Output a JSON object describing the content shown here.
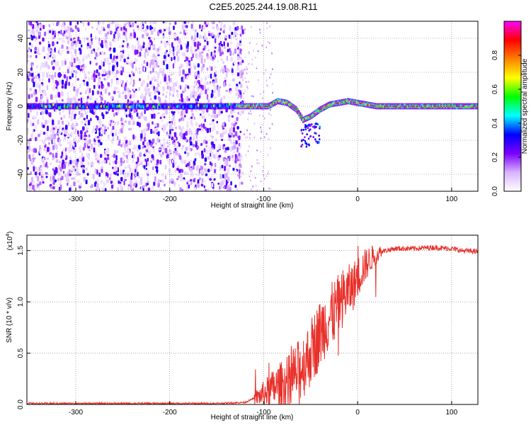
{
  "figure_title": "C2E5.2025.244.19.08.R11",
  "chart_data": [
    {
      "type": "heatmap",
      "title": "C2E5.2025.244.19.08.R11",
      "xlabel": "Height of straight line (km)",
      "ylabel": "Frequency (Hz)",
      "xlim": [
        -352,
        128
      ],
      "ylim": [
        -50,
        50
      ],
      "x_ticks": [
        -300,
        -200,
        -100,
        0,
        100
      ],
      "x_tick_labels": [
        "-300",
        "-200",
        "-100",
        "0",
        "100"
      ],
      "y_ticks": [
        -40,
        -20,
        0,
        20,
        40
      ],
      "y_tick_labels": [
        "-40",
        "-20",
        "0",
        "20",
        "40"
      ],
      "noise_region_end_km": -130,
      "signal_track": {
        "x": [
          -352,
          -300,
          -200,
          -130,
          -110,
          -95,
          -85,
          -75,
          -65,
          -58,
          -50,
          -40,
          -30,
          -20,
          -10,
          0,
          20,
          60,
          100,
          128
        ],
        "freq_hz": [
          0,
          0,
          0,
          0,
          0,
          0,
          3,
          2,
          -2,
          -8,
          -6,
          -2,
          1,
          2,
          3,
          2,
          0,
          0,
          0,
          0
        ]
      },
      "colorbar": {
        "label": "Normalized spectral amplitude",
        "range": [
          0.0,
          1.0
        ],
        "ticks": [
          0.0,
          0.2,
          0.4,
          0.6,
          0.8
        ],
        "tick_labels": [
          "0.0",
          "0.2",
          "0.4",
          "0.6",
          "0.8"
        ],
        "colormap": [
          "#ffffff",
          "#d9b3ff",
          "#7a00ff",
          "#0000ff",
          "#00ffff",
          "#00ff00",
          "#ffff00",
          "#ff8000",
          "#ff0000",
          "#ff00ff"
        ]
      }
    },
    {
      "type": "line",
      "xlabel": "Height of straight line (km)",
      "ylabel": "SNR (10 * v/v)",
      "y_scale_label": "(x10",
      "y_scale_exponent": "4",
      "xlim": [
        -352,
        128
      ],
      "ylim": [
        0,
        1.65
      ],
      "x_ticks": [
        -300,
        -200,
        -100,
        0,
        100
      ],
      "x_tick_labels": [
        "-300",
        "-200",
        "-100",
        "0",
        "100"
      ],
      "y_ticks": [
        0,
        0.5,
        1.0,
        1.5
      ],
      "y_tick_labels": [
        "0.0",
        "0.5",
        "1.0",
        "1.5"
      ],
      "series": [
        {
          "name": "SNR",
          "color": "#e8302a",
          "x": [
            -352,
            -300,
            -250,
            -200,
            -150,
            -120,
            -105,
            -95,
            -85,
            -75,
            -65,
            -55,
            -45,
            -35,
            -25,
            -15,
            -5,
            5,
            15,
            25,
            40,
            60,
            80,
            100,
            110,
            128
          ],
          "y": [
            0.01,
            0.01,
            0.01,
            0.01,
            0.01,
            0.02,
            0.08,
            0.13,
            0.18,
            0.2,
            0.3,
            0.42,
            0.6,
            0.78,
            0.9,
            1.05,
            1.15,
            1.32,
            1.43,
            1.49,
            1.52,
            1.52,
            1.53,
            1.52,
            1.5,
            1.49
          ]
        }
      ]
    }
  ]
}
